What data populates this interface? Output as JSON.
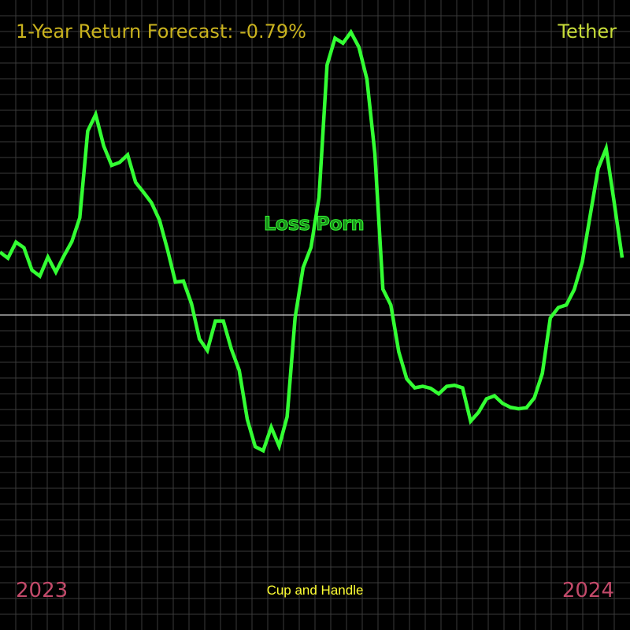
{
  "colors": {
    "background": "#000000",
    "grid": "#3a3a3a",
    "baseline": "#cccccc",
    "line": "#33ff33",
    "title": "#c9b21e",
    "asset": "#c8dd3a",
    "annotation": "#33ff33",
    "dates": "#c24a6a",
    "pattern": "#ffff33"
  },
  "header": {
    "title": "1-Year Return Forecast: -0.79%",
    "asset": "Tether"
  },
  "footer": {
    "start_label": "2023",
    "end_label": "2024",
    "pattern_label": "Cup and Handle"
  },
  "annotation": {
    "text": "Loss Porn"
  },
  "chart_data": {
    "type": "line",
    "title": "1-Year Return Forecast: -0.79%",
    "xlabel": "",
    "ylabel": "",
    "x_range_labels": [
      "2023",
      "2024"
    ],
    "ylim": [
      -60,
      60
    ],
    "baseline": 0,
    "grid": true,
    "series": [
      {
        "name": "Tether",
        "values": [
          12.6,
          11.4,
          14.6,
          13.5,
          9.0,
          7.8,
          11.6,
          8.6,
          11.8,
          14.7,
          19.5,
          36.9,
          40.2,
          33.9,
          30.0,
          30.6,
          32.1,
          26.6,
          24.6,
          22.5,
          19.0,
          13.1,
          6.6,
          6.8,
          2.3,
          -4.8,
          -7.1,
          -1.2,
          -1.2,
          -6.8,
          -11.1,
          -20.9,
          -26.4,
          -27.2,
          -22.5,
          -26.3,
          -20.4,
          -0.6,
          9.5,
          13.6,
          23.6,
          50.1,
          55.5,
          54.5,
          56.7,
          53.7,
          47.3,
          32.4,
          5.2,
          2.0,
          -7.4,
          -12.8,
          -14.6,
          -14.3,
          -14.7,
          -15.8,
          -14.3,
          -14.1,
          -14.6,
          -21.3,
          -19.5,
          -16.8,
          -16.2,
          -17.7,
          -18.5,
          -18.8,
          -18.6,
          -16.6,
          -11.7,
          -0.6,
          1.5,
          2.0,
          5.1,
          10.6,
          20.0,
          29.4,
          33.4,
          22.6,
          11.5
        ]
      }
    ]
  }
}
